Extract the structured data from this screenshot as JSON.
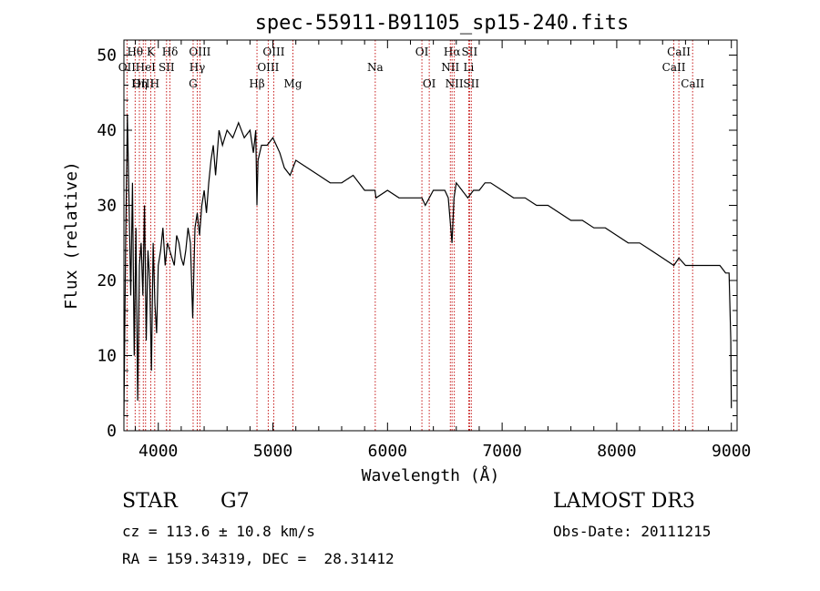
{
  "chart_data": {
    "type": "line",
    "title": "spec-55911-B91105_sp15-240.fits",
    "xlabel": "Wavelength (Å)",
    "ylabel": "Flux (relative)",
    "xlim": [
      3700,
      9050
    ],
    "ylim": [
      0,
      52
    ],
    "xticks": [
      4000,
      5000,
      6000,
      7000,
      8000,
      9000
    ],
    "yticks": [
      0,
      10,
      20,
      30,
      40,
      50
    ],
    "series": [
      {
        "name": "spectrum",
        "x": [
          3700,
          3715,
          3730,
          3745,
          3760,
          3775,
          3790,
          3805,
          3820,
          3835,
          3850,
          3865,
          3880,
          3895,
          3910,
          3925,
          3940,
          3955,
          3970,
          3985,
          4000,
          4020,
          4040,
          4060,
          4080,
          4100,
          4120,
          4140,
          4160,
          4180,
          4200,
          4220,
          4240,
          4260,
          4280,
          4300,
          4320,
          4340,
          4360,
          4380,
          4400,
          4420,
          4440,
          4460,
          4480,
          4500,
          4530,
          4560,
          4600,
          4650,
          4700,
          4750,
          4800,
          4830,
          4850,
          4861,
          4870,
          4900,
          4950,
          5000,
          5030,
          5060,
          5100,
          5150,
          5200,
          5300,
          5400,
          5500,
          5600,
          5700,
          5800,
          5890,
          5900,
          6000,
          6100,
          6200,
          6300,
          6330,
          6400,
          6500,
          6530,
          6563,
          6580,
          6600,
          6650,
          6700,
          6750,
          6800,
          6850,
          6900,
          7000,
          7100,
          7200,
          7300,
          7400,
          7500,
          7600,
          7700,
          7800,
          7900,
          8000,
          8100,
          8200,
          8300,
          8400,
          8498,
          8542,
          8600,
          8662,
          8700,
          8800,
          8900,
          8950,
          8980,
          8995,
          9000
        ],
        "y": [
          2,
          25,
          42,
          30,
          18,
          33,
          10,
          27,
          4,
          22,
          25,
          18,
          30,
          12,
          24,
          20,
          8,
          25,
          17,
          13,
          22,
          24,
          27,
          22,
          25,
          24,
          23,
          22,
          26,
          25,
          23,
          22,
          24,
          27,
          25,
          15,
          27,
          29,
          26,
          30,
          32,
          29,
          33,
          36,
          38,
          34,
          40,
          38,
          40,
          39,
          41,
          39,
          40,
          37,
          40,
          30,
          36,
          38,
          38,
          39,
          38,
          37,
          35,
          34,
          36,
          35,
          34,
          33,
          33,
          34,
          32,
          32,
          31,
          32,
          31,
          31,
          31,
          30,
          32,
          32,
          31,
          25,
          31,
          33,
          32,
          31,
          32,
          32,
          33,
          33,
          32,
          31,
          31,
          30,
          30,
          29,
          28,
          28,
          27,
          27,
          26,
          25,
          25,
          24,
          23,
          22,
          23,
          22,
          22,
          22,
          22,
          22,
          21,
          21,
          12,
          3
        ]
      }
    ],
    "spectral_lines": [
      {
        "label": "OII",
        "wavelength": 3727,
        "row": 2
      },
      {
        "label": "Hθ",
        "wavelength": 3798,
        "row": 1
      },
      {
        "label": "OIII",
        "wavelength": 3869,
        "row": 3
      },
      {
        "label": "HeI",
        "wavelength": 3889,
        "row": 2
      },
      {
        "label": "Hη",
        "wavelength": 3835,
        "row": 3
      },
      {
        "label": "K",
        "wavelength": 3934,
        "row": 1
      },
      {
        "label": "SII",
        "wavelength": 4072,
        "row": 2
      },
      {
        "label": "H",
        "wavelength": 3969,
        "row": 3
      },
      {
        "label": "Hδ",
        "wavelength": 4102,
        "row": 1
      },
      {
        "label": "OIII",
        "wavelength": 4363,
        "row": 1
      },
      {
        "label": "Hγ",
        "wavelength": 4340,
        "row": 2
      },
      {
        "label": "G",
        "wavelength": 4304,
        "row": 3
      },
      {
        "label": "Hβ",
        "wavelength": 4861,
        "row": 3
      },
      {
        "label": "OIII",
        "wavelength": 5007,
        "row": 1
      },
      {
        "label": "OIII",
        "wavelength": 4959,
        "row": 2
      },
      {
        "label": "Mg",
        "wavelength": 5175,
        "row": 3
      },
      {
        "label": "Na",
        "wavelength": 5893,
        "row": 2
      },
      {
        "label": "OI",
        "wavelength": 6300,
        "row": 1
      },
      {
        "label": "OI",
        "wavelength": 6364,
        "row": 3
      },
      {
        "label": "Hα",
        "wavelength": 6563,
        "row": 1
      },
      {
        "label": "NII",
        "wavelength": 6548,
        "row": 2
      },
      {
        "label": "NII",
        "wavelength": 6583,
        "row": 3
      },
      {
        "label": "SII",
        "wavelength": 6716,
        "row": 1
      },
      {
        "label": "Li",
        "wavelength": 6708,
        "row": 2
      },
      {
        "label": "SII",
        "wavelength": 6731,
        "row": 3
      },
      {
        "label": "CaII",
        "wavelength": 8542,
        "row": 1
      },
      {
        "label": "CaII",
        "wavelength": 8498,
        "row": 2
      },
      {
        "label": "CaII",
        "wavelength": 8662,
        "row": 3
      }
    ]
  },
  "info": {
    "object_class": "STAR",
    "subclass": "G7",
    "redshift": "cz = 113.6 ± 10.8 km/s",
    "coords": "RA = 159.34319, DEC =  28.31412",
    "survey": "LAMOST DR3",
    "obs_date": "Obs-Date: 20111215"
  }
}
